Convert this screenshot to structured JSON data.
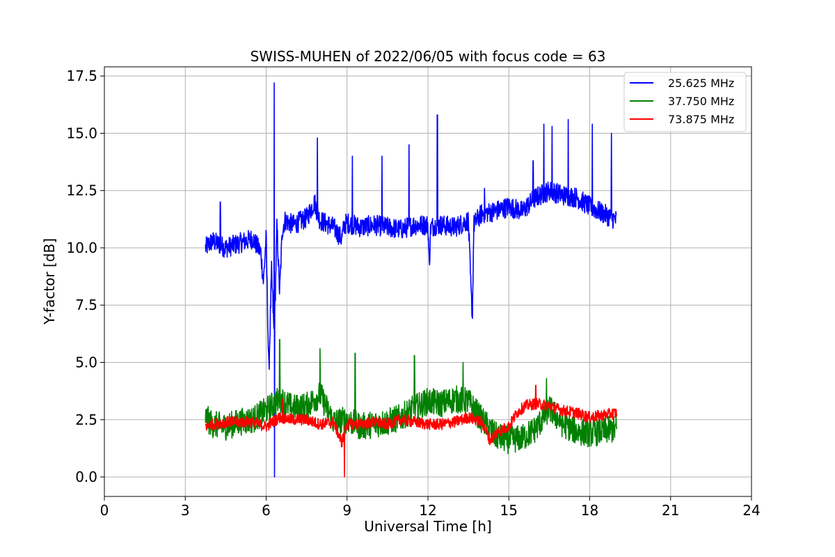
{
  "chart_data": {
    "type": "line",
    "title": "SWISS-MUHEN of 2022/06/05 with focus code = 63",
    "xlabel": "Universal Time [h]",
    "ylabel": "Y-factor [dB]",
    "xlim": [
      0,
      24
    ],
    "ylim": [
      -0.85,
      17.9
    ],
    "xticks": [
      0,
      3,
      6,
      9,
      12,
      15,
      18,
      21,
      24
    ],
    "yticks": [
      0.0,
      2.5,
      5.0,
      7.5,
      10.0,
      12.5,
      15.0,
      17.5
    ],
    "xtick_labels": [
      "0",
      "3",
      "6",
      "9",
      "12",
      "15",
      "18",
      "21",
      "24"
    ],
    "ytick_labels": [
      "0.0",
      "2.5",
      "5.0",
      "7.5",
      "10.0",
      "12.5",
      "15.0",
      "17.5"
    ],
    "grid": true,
    "legend_position": "top-right",
    "series": [
      {
        "name": "25.625 MHz",
        "color": "#0000ff",
        "x": [
          3.75,
          4.0,
          4.5,
          5.0,
          5.5,
          5.8,
          5.9,
          6.0,
          6.1,
          6.2,
          6.3,
          6.4,
          6.5,
          6.6,
          6.7,
          7.0,
          7.5,
          7.8,
          7.9,
          8.0,
          8.5,
          8.8,
          8.9,
          9.0,
          9.5,
          10.0,
          10.5,
          11.0,
          11.5,
          12.0,
          12.05,
          12.1,
          12.3,
          12.5,
          13.0,
          13.5,
          13.6,
          13.65,
          13.7,
          13.8,
          14.0,
          14.5,
          15.0,
          15.5,
          16.0,
          16.5,
          17.0,
          17.5,
          18.0,
          18.5,
          19.0
        ],
        "y": [
          10.0,
          10.3,
          10.0,
          10.2,
          10.4,
          9.8,
          8.5,
          10.5,
          4.5,
          9.0,
          6.0,
          11.0,
          8.0,
          10.8,
          11.2,
          11.0,
          11.3,
          12.0,
          11.5,
          11.2,
          10.9,
          10.4,
          11.0,
          11.1,
          10.9,
          11.0,
          10.9,
          10.8,
          11.0,
          11.0,
          9.2,
          10.9,
          11.0,
          11.0,
          10.9,
          11.2,
          8.0,
          7.0,
          11.0,
          11.2,
          11.5,
          11.6,
          11.8,
          11.6,
          12.2,
          12.5,
          12.3,
          12.2,
          11.8,
          11.5,
          11.2
        ],
        "spikes": [
          [
            4.3,
            12.0
          ],
          [
            6.3,
            17.2
          ],
          [
            6.31,
            0.0
          ],
          [
            7.9,
            14.8
          ],
          [
            9.2,
            14.0
          ],
          [
            10.3,
            14.0
          ],
          [
            11.3,
            14.5
          ],
          [
            12.35,
            15.8
          ],
          [
            14.1,
            12.6
          ],
          [
            15.9,
            13.8
          ],
          [
            16.3,
            15.4
          ],
          [
            16.6,
            15.3
          ],
          [
            17.2,
            15.6
          ],
          [
            18.1,
            15.4
          ],
          [
            18.8,
            15.0
          ]
        ],
        "noise_amplitude": 0.45
      },
      {
        "name": "37.750 MHz",
        "color": "#008000",
        "x": [
          3.75,
          4.0,
          4.5,
          5.0,
          5.5,
          6.0,
          6.5,
          7.0,
          7.5,
          8.0,
          8.5,
          9.0,
          9.5,
          10.0,
          10.5,
          11.0,
          11.5,
          12.0,
          12.5,
          13.0,
          13.5,
          14.0,
          14.5,
          15.0,
          15.5,
          16.0,
          16.5,
          17.0,
          17.5,
          18.0,
          18.5,
          19.0
        ],
        "y": [
          2.6,
          2.3,
          2.2,
          2.4,
          2.5,
          2.9,
          3.4,
          3.0,
          3.1,
          3.6,
          2.4,
          2.5,
          2.2,
          2.3,
          2.4,
          2.6,
          3.0,
          3.3,
          3.2,
          3.4,
          3.3,
          2.5,
          1.8,
          1.6,
          1.7,
          2.1,
          3.0,
          2.3,
          2.0,
          1.9,
          2.0,
          2.1
        ],
        "spikes": [
          [
            6.5,
            6.0
          ],
          [
            8.0,
            5.6
          ],
          [
            9.3,
            5.4
          ],
          [
            11.5,
            5.3
          ],
          [
            13.3,
            5.0
          ],
          [
            16.4,
            4.3
          ]
        ],
        "noise_amplitude": 0.6
      },
      {
        "name": "73.875 MHz",
        "color": "#ff0000",
        "x": [
          3.75,
          4.0,
          4.5,
          5.0,
          5.5,
          6.0,
          6.5,
          7.0,
          7.5,
          8.0,
          8.5,
          8.8,
          9.0,
          9.5,
          10.0,
          10.5,
          11.0,
          11.5,
          12.0,
          12.5,
          13.0,
          13.5,
          14.0,
          14.3,
          14.6,
          15.0,
          15.3,
          15.6,
          16.0,
          16.5,
          17.0,
          17.5,
          18.0,
          18.5,
          19.0
        ],
        "y": [
          2.2,
          2.3,
          2.4,
          2.4,
          2.4,
          2.2,
          2.6,
          2.5,
          2.5,
          2.3,
          2.4,
          1.5,
          2.3,
          2.3,
          2.4,
          2.3,
          2.5,
          2.4,
          2.3,
          2.3,
          2.4,
          2.6,
          2.4,
          1.6,
          2.0,
          2.2,
          2.8,
          3.1,
          3.2,
          3.1,
          2.9,
          2.8,
          2.6,
          2.7,
          2.8
        ],
        "spikes": [
          [
            8.9,
            0.0
          ],
          [
            6.6,
            3.4
          ],
          [
            16.0,
            4.0
          ]
        ],
        "noise_amplitude": 0.25
      }
    ]
  }
}
